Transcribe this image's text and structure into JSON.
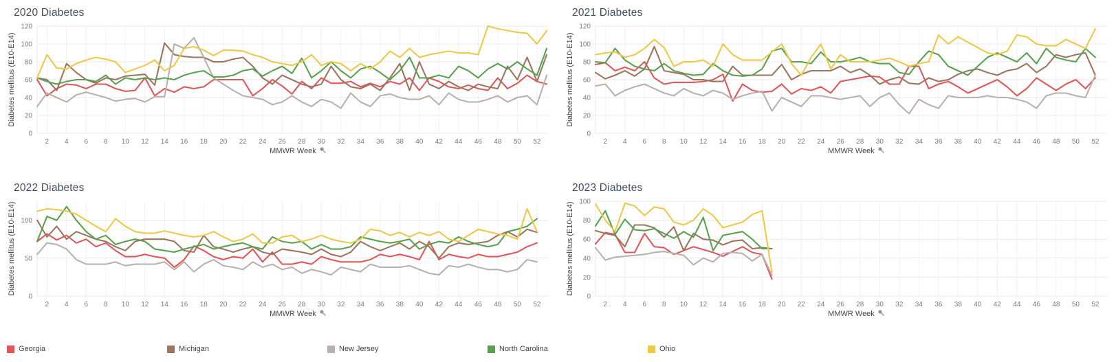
{
  "page": {
    "background": "#ffffff"
  },
  "axis": {
    "x_label": "MMWR Week",
    "y_label": "Diabetes mellitus (E10-E14)",
    "x_ticks": [
      2,
      4,
      6,
      8,
      10,
      12,
      14,
      16,
      18,
      20,
      22,
      24,
      26,
      28,
      30,
      32,
      34,
      36,
      38,
      40,
      42,
      44,
      46,
      48,
      50,
      52
    ],
    "pin_icon_color": "#8b95a5"
  },
  "legend": {
    "items": [
      {
        "label": "Georgia",
        "color": "#e15759"
      },
      {
        "label": "Michigan",
        "color": "#9c755f"
      },
      {
        "label": "New Jersey",
        "color": "#bab0ac"
      },
      {
        "label": "North Carolina",
        "color": "#59a14f"
      },
      {
        "label": "Ohio",
        "color": "#edc948"
      }
    ]
  },
  "chart_data": [
    {
      "type": "line",
      "title": "2020 Diabetes",
      "xlabel": "MMWR Week",
      "ylabel": "Diabetes mellitus (E10-E14)",
      "x_start_week": 1,
      "ylim": [
        0,
        120
      ],
      "yticks": [
        0,
        20,
        40,
        60,
        80,
        100,
        120
      ],
      "series": [
        {
          "name": "Georgia",
          "color": "#e15759",
          "values": [
            60,
            42,
            50,
            55,
            54,
            50,
            55,
            55,
            50,
            47,
            48,
            62,
            42,
            50,
            46,
            52,
            50,
            52,
            60,
            60,
            60,
            60,
            42,
            50,
            60,
            53,
            44,
            58,
            50,
            62,
            56,
            56,
            58,
            52,
            56,
            52,
            58,
            55,
            62,
            48,
            62,
            58,
            52,
            50,
            54,
            50,
            48,
            62,
            50,
            56,
            65,
            58,
            55
          ]
        },
        {
          "name": "Michigan",
          "color": "#9c755f",
          "values": [
            62,
            60,
            48,
            78,
            68,
            60,
            56,
            62,
            60,
            64,
            65,
            66,
            54,
            101,
            88,
            86,
            85,
            85,
            80,
            80,
            83,
            85,
            75,
            62,
            55,
            65,
            60,
            55,
            52,
            55,
            75,
            60,
            52,
            50,
            55,
            48,
            62,
            78,
            48,
            80,
            55,
            50,
            58,
            52,
            48,
            55,
            52,
            50,
            75,
            60,
            85,
            58,
            88
          ]
        },
        {
          "name": "New Jersey",
          "color": "#bab0ac",
          "values": [
            30,
            45,
            40,
            35,
            43,
            46,
            43,
            40,
            36,
            38,
            39,
            35,
            41,
            41,
            100,
            95,
            107,
            85,
            62,
            55,
            48,
            42,
            40,
            38,
            32,
            35,
            42,
            35,
            30,
            38,
            35,
            28,
            45,
            35,
            30,
            42,
            44,
            40,
            38,
            38,
            42,
            32,
            45,
            38,
            35,
            35,
            38,
            42,
            35,
            40,
            42,
            32,
            65
          ]
        },
        {
          "name": "North Carolina",
          "color": "#59a14f",
          "values": [
            62,
            58,
            55,
            58,
            60,
            60,
            58,
            65,
            55,
            62,
            60,
            62,
            60,
            62,
            60,
            65,
            68,
            70,
            63,
            63,
            65,
            70,
            72,
            64,
            70,
            75,
            67,
            84,
            62,
            70,
            80,
            70,
            62,
            72,
            75,
            68,
            60,
            70,
            85,
            62,
            62,
            65,
            62,
            75,
            70,
            62,
            72,
            78,
            72,
            80,
            72,
            65,
            95
          ]
        },
        {
          "name": "Ohio",
          "color": "#edc948",
          "values": [
            62,
            88,
            73,
            72,
            78,
            82,
            85,
            83,
            80,
            68,
            72,
            76,
            82,
            70,
            76,
            95,
            97,
            93,
            87,
            93,
            93,
            92,
            88,
            85,
            80,
            78,
            76,
            80,
            88,
            76,
            80,
            78,
            70,
            78,
            72,
            80,
            92,
            85,
            95,
            85,
            88,
            90,
            92,
            90,
            90,
            88,
            120,
            117,
            115,
            113,
            112,
            100,
            115
          ]
        }
      ]
    },
    {
      "type": "line",
      "title": "2021 Diabetes",
      "xlabel": "MMWR Week",
      "ylabel": "Diabetes mellitus (E10-E14)",
      "x_start_week": 1,
      "ylim": [
        0,
        120
      ],
      "yticks": [
        0,
        20,
        40,
        60,
        80,
        100,
        120
      ],
      "series": [
        {
          "name": "Georgia",
          "color": "#e15759",
          "values": [
            77,
            79,
            70,
            74,
            70,
            80,
            62,
            55,
            57,
            57,
            57,
            58,
            60,
            66,
            36,
            55,
            48,
            46,
            47,
            55,
            44,
            50,
            48,
            52,
            45,
            58,
            60,
            62,
            64,
            63,
            55,
            55,
            75,
            75,
            50,
            55,
            58,
            52,
            45,
            50,
            55,
            60,
            52,
            42,
            50,
            62,
            55,
            48,
            55,
            60,
            50,
            62
          ]
        },
        {
          "name": "Michigan",
          "color": "#9c755f",
          "values": [
            68,
            61,
            65,
            70,
            64,
            72,
            97,
            70,
            68,
            66,
            60,
            60,
            58,
            58,
            75,
            65,
            65,
            65,
            65,
            77,
            60,
            66,
            70,
            70,
            70,
            75,
            68,
            72,
            65,
            55,
            60,
            63,
            56,
            55,
            62,
            58,
            60,
            66,
            70,
            72,
            68,
            65,
            70,
            72,
            78,
            68,
            75,
            88,
            85,
            88,
            90,
            65
          ]
        },
        {
          "name": "New Jersey",
          "color": "#bab0ac",
          "values": [
            53,
            55,
            42,
            48,
            52,
            55,
            50,
            45,
            42,
            50,
            45,
            42,
            48,
            45,
            38,
            42,
            45,
            47,
            25,
            40,
            35,
            30,
            42,
            42,
            40,
            38,
            40,
            42,
            30,
            40,
            45,
            32,
            22,
            38,
            32,
            28,
            42,
            40,
            40,
            40,
            42,
            40,
            40,
            38,
            35,
            28,
            42,
            45,
            45,
            42,
            40,
            65
          ]
        },
        {
          "name": "North Carolina",
          "color": "#59a14f",
          "values": [
            80,
            79,
            95,
            82,
            75,
            72,
            70,
            78,
            70,
            67,
            65,
            66,
            78,
            70,
            65,
            64,
            65,
            72,
            92,
            95,
            80,
            80,
            78,
            91,
            80,
            80,
            82,
            85,
            80,
            78,
            78,
            68,
            66,
            80,
            92,
            88,
            75,
            70,
            65,
            75,
            85,
            90,
            85,
            80,
            90,
            78,
            95,
            85,
            82,
            80,
            95,
            85
          ]
        },
        {
          "name": "Ohio",
          "color": "#edc948",
          "values": [
            88,
            90,
            91,
            85,
            88,
            95,
            105,
            96,
            75,
            80,
            80,
            82,
            75,
            100,
            88,
            82,
            82,
            82,
            91,
            100,
            78,
            65,
            85,
            100,
            72,
            88,
            80,
            80,
            80,
            82,
            84,
            80,
            75,
            78,
            80,
            110,
            100,
            108,
            102,
            96,
            90,
            88,
            92,
            110,
            108,
            100,
            98,
            98,
            105,
            100,
            95,
            117
          ]
        }
      ]
    },
    {
      "type": "line",
      "title": "2022 Diabetes",
      "xlabel": "MMWR Week",
      "ylabel": "Diabetes mellitus (E10-E14)",
      "x_start_week": 1,
      "ylim": [
        0,
        125
      ],
      "yticks": [
        0,
        50,
        100
      ],
      "series": [
        {
          "name": "Georgia",
          "color": "#e15759",
          "values": [
            72,
            82,
            74,
            80,
            70,
            75,
            65,
            70,
            60,
            52,
            52,
            55,
            52,
            50,
            38,
            48,
            66,
            60,
            52,
            48,
            52,
            50,
            62,
            45,
            58,
            42,
            42,
            45,
            42,
            52,
            48,
            45,
            45,
            45,
            48,
            55,
            52,
            55,
            52,
            48,
            72,
            48,
            55,
            52,
            50,
            55,
            52,
            52,
            55,
            58,
            65,
            70
          ]
        },
        {
          "name": "Michigan",
          "color": "#9c755f",
          "values": [
            100,
            78,
            92,
            75,
            85,
            80,
            75,
            72,
            65,
            60,
            72,
            75,
            75,
            75,
            72,
            60,
            58,
            80,
            65,
            62,
            58,
            62,
            65,
            58,
            55,
            62,
            60,
            58,
            55,
            62,
            55,
            52,
            58,
            72,
            65,
            60,
            65,
            70,
            62,
            72,
            65,
            50,
            65,
            70,
            68,
            70,
            72,
            80,
            85,
            78,
            88,
            84
          ]
        },
        {
          "name": "New Jersey",
          "color": "#bab0ac",
          "values": [
            55,
            70,
            68,
            62,
            48,
            42,
            42,
            42,
            45,
            40,
            42,
            42,
            42,
            45,
            35,
            45,
            32,
            42,
            48,
            40,
            38,
            35,
            45,
            38,
            42,
            35,
            38,
            30,
            35,
            32,
            28,
            38,
            35,
            32,
            42,
            38,
            38,
            38,
            40,
            35,
            30,
            28,
            40,
            38,
            42,
            38,
            35,
            35,
            32,
            35,
            48,
            45
          ]
        },
        {
          "name": "North Carolina",
          "color": "#59a14f",
          "values": [
            72,
            105,
            100,
            118,
            100,
            85,
            75,
            80,
            68,
            72,
            75,
            72,
            62,
            60,
            58,
            62,
            65,
            68,
            62,
            65,
            68,
            70,
            65,
            62,
            78,
            72,
            70,
            72,
            62,
            68,
            62,
            62,
            65,
            78,
            75,
            72,
            70,
            72,
            75,
            62,
            68,
            72,
            70,
            78,
            72,
            68,
            65,
            68,
            85,
            88,
            92,
            102
          ]
        },
        {
          "name": "Ohio",
          "color": "#edc948",
          "values": [
            112,
            115,
            114,
            112,
            108,
            100,
            92,
            85,
            102,
            92,
            85,
            83,
            83,
            86,
            83,
            80,
            78,
            80,
            85,
            78,
            72,
            75,
            82,
            70,
            70,
            78,
            80,
            72,
            75,
            80,
            75,
            72,
            70,
            75,
            88,
            86,
            80,
            84,
            78,
            84,
            80,
            85,
            75,
            72,
            80,
            88,
            85,
            82,
            80,
            75,
            115,
            85
          ]
        }
      ]
    },
    {
      "type": "line",
      "title": "2023 Diabetes",
      "xlabel": "MMWR Week",
      "ylabel": "Diabetes mellitus (E10-E14)",
      "x_start_week": 1,
      "ylim": [
        0,
        100
      ],
      "yticks": [
        0,
        20,
        40,
        60,
        80,
        100
      ],
      "series": [
        {
          "name": "Georgia",
          "color": "#e15759",
          "values": [
            55,
            67,
            65,
            46,
            46,
            66,
            52,
            51,
            44,
            48,
            52,
            49,
            46,
            42,
            47,
            52,
            46,
            44,
            18
          ]
        },
        {
          "name": "Michigan",
          "color": "#9c755f",
          "values": [
            69,
            66,
            64,
            52,
            75,
            75,
            72,
            62,
            73,
            48,
            66,
            60,
            59,
            54,
            58,
            59,
            50,
            51,
            50
          ]
        },
        {
          "name": "New Jersey",
          "color": "#bab0ac",
          "values": [
            51,
            38,
            41,
            42,
            43,
            44,
            46,
            47,
            45,
            43,
            33,
            40,
            36,
            45,
            46,
            45,
            37,
            44,
            22
          ]
        },
        {
          "name": "North Carolina",
          "color": "#59a14f",
          "values": [
            74,
            90,
            65,
            81,
            70,
            69,
            71,
            66,
            61,
            68,
            62,
            83,
            48,
            64,
            66,
            68,
            60,
            50,
            50
          ]
        },
        {
          "name": "Ohio",
          "color": "#edc948",
          "values": [
            97,
            80,
            68,
            98,
            95,
            85,
            94,
            92,
            78,
            75,
            80,
            92,
            85,
            72,
            75,
            78,
            86,
            90,
            25
          ]
        }
      ]
    }
  ]
}
